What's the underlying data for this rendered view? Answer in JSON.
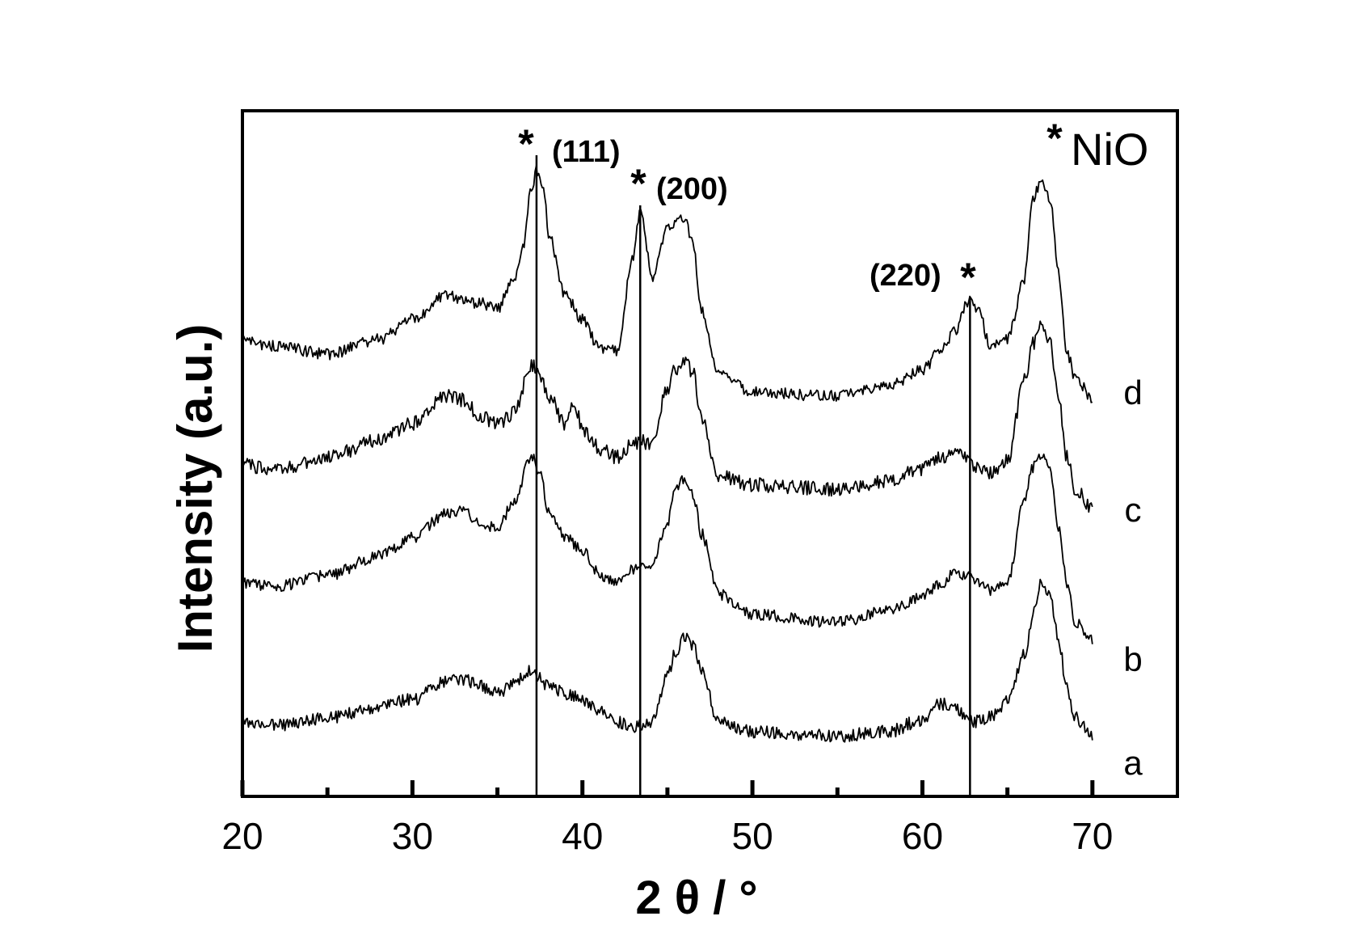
{
  "chart_data": {
    "type": "line",
    "xlabel": "2 θ / °",
    "ylabel": "Intensity (a.u.)",
    "xlim": [
      20,
      75
    ],
    "x_ticks": [
      20,
      30,
      40,
      50,
      60,
      70
    ],
    "x_minor_ticks": [
      25,
      35,
      45,
      55,
      65
    ],
    "y_ticks_shown": false,
    "grid": false,
    "legend": "none",
    "phase_label": {
      "marker": "*",
      "text": "NiO"
    },
    "reference_lines": [
      {
        "x": 37.3,
        "hkl": "(111)",
        "marker": "*"
      },
      {
        "x": 43.4,
        "hkl": "(200)",
        "marker": "*"
      },
      {
        "x": 62.8,
        "hkl": "(220)",
        "marker": "*"
      }
    ],
    "series": [
      {
        "name": "a",
        "x_range": [
          20,
          70
        ],
        "noise": 8,
        "points": [
          [
            20,
            895
          ],
          [
            22,
            897
          ],
          [
            25,
            888
          ],
          [
            28,
            875
          ],
          [
            30,
            865
          ],
          [
            32,
            843
          ],
          [
            33,
            840
          ],
          [
            34,
            848
          ],
          [
            35,
            858
          ],
          [
            36,
            845
          ],
          [
            37,
            830
          ],
          [
            38,
            848
          ],
          [
            39,
            858
          ],
          [
            40,
            865
          ],
          [
            41,
            878
          ],
          [
            42,
            892
          ],
          [
            43,
            898
          ],
          [
            44,
            893
          ],
          [
            45,
            838
          ],
          [
            45.5,
            806
          ],
          [
            46,
            788
          ],
          [
            46.5,
            798
          ],
          [
            47,
            828
          ],
          [
            48,
            892
          ],
          [
            50,
            905
          ],
          [
            55,
            910
          ],
          [
            58,
            905
          ],
          [
            60,
            890
          ],
          [
            61,
            870
          ],
          [
            62,
            878
          ],
          [
            63,
            893
          ],
          [
            64,
            887
          ],
          [
            65,
            868
          ],
          [
            66,
            810
          ],
          [
            66.5,
            760
          ],
          [
            67,
            720
          ],
          [
            67.5,
            732
          ],
          [
            68,
            790
          ],
          [
            68.5,
            850
          ],
          [
            69,
            888
          ],
          [
            70,
            912
          ]
        ]
      },
      {
        "name": "b",
        "x_range": [
          20,
          70
        ],
        "noise": 7,
        "points": [
          [
            20,
            722
          ],
          [
            22,
            725
          ],
          [
            25,
            712
          ],
          [
            28,
            688
          ],
          [
            30,
            665
          ],
          [
            32,
            635
          ],
          [
            33,
            630
          ],
          [
            34,
            648
          ],
          [
            35,
            652
          ],
          [
            36,
            620
          ],
          [
            37,
            563
          ],
          [
            37.5,
            583
          ],
          [
            38,
            630
          ],
          [
            39,
            665
          ],
          [
            40,
            680
          ],
          [
            41,
            710
          ],
          [
            42,
            722
          ],
          [
            43,
            705
          ],
          [
            43.5,
            693
          ],
          [
            44,
            705
          ],
          [
            45,
            645
          ],
          [
            45.5,
            605
          ],
          [
            46,
            593
          ],
          [
            46.5,
            610
          ],
          [
            47,
            660
          ],
          [
            48,
            735
          ],
          [
            50,
            760
          ],
          [
            55,
            770
          ],
          [
            58,
            755
          ],
          [
            60,
            738
          ],
          [
            61,
            723
          ],
          [
            62,
            708
          ],
          [
            63,
            715
          ],
          [
            64,
            730
          ],
          [
            65,
            722
          ],
          [
            66,
            620
          ],
          [
            66.5,
            578
          ],
          [
            67,
            562
          ],
          [
            67.5,
            580
          ],
          [
            68,
            650
          ],
          [
            68.5,
            720
          ],
          [
            69,
            770
          ],
          [
            70,
            790
          ]
        ]
      },
      {
        "name": "c",
        "x_range": [
          20,
          70
        ],
        "noise": 9,
        "points": [
          [
            20,
            575
          ],
          [
            22,
            580
          ],
          [
            25,
            566
          ],
          [
            28,
            545
          ],
          [
            30,
            523
          ],
          [
            32,
            490
          ],
          [
            33,
            495
          ],
          [
            34,
            515
          ],
          [
            35,
            525
          ],
          [
            36,
            510
          ],
          [
            37,
            450
          ],
          [
            37.5,
            465
          ],
          [
            38,
            490
          ],
          [
            39,
            525
          ],
          [
            39.5,
            495
          ],
          [
            40,
            530
          ],
          [
            41,
            555
          ],
          [
            42,
            565
          ],
          [
            43,
            550
          ],
          [
            43.5,
            545
          ],
          [
            44,
            550
          ],
          [
            45,
            480
          ],
          [
            45.5,
            455
          ],
          [
            46,
            445
          ],
          [
            46.5,
            460
          ],
          [
            47,
            515
          ],
          [
            48,
            588
          ],
          [
            50,
            600
          ],
          [
            55,
            605
          ],
          [
            58,
            595
          ],
          [
            60,
            580
          ],
          [
            61,
            565
          ],
          [
            62,
            560
          ],
          [
            63,
            575
          ],
          [
            64,
            585
          ],
          [
            65,
            568
          ],
          [
            66,
            470
          ],
          [
            66.5,
            425
          ],
          [
            67,
            400
          ],
          [
            67.5,
            420
          ],
          [
            68,
            490
          ],
          [
            68.5,
            565
          ],
          [
            69,
            605
          ],
          [
            70,
            628
          ]
        ]
      },
      {
        "name": "d",
        "x_range": [
          20,
          70
        ],
        "noise": 7,
        "points": [
          [
            20,
            422
          ],
          [
            22,
            428
          ],
          [
            25,
            438
          ],
          [
            28,
            420
          ],
          [
            30,
            395
          ],
          [
            32,
            365
          ],
          [
            33,
            372
          ],
          [
            34,
            375
          ],
          [
            35,
            382
          ],
          [
            36,
            342
          ],
          [
            36.5,
            305
          ],
          [
            37,
            235
          ],
          [
            37.3,
            210
          ],
          [
            37.8,
            240
          ],
          [
            38,
            290
          ],
          [
            39,
            365
          ],
          [
            40,
            395
          ],
          [
            41,
            430
          ],
          [
            42,
            433
          ],
          [
            43,
            320
          ],
          [
            43.4,
            258
          ],
          [
            43.8,
            305
          ],
          [
            44,
            345
          ],
          [
            45,
            285
          ],
          [
            45.5,
            272
          ],
          [
            46,
            268
          ],
          [
            46.5,
            300
          ],
          [
            47,
            385
          ],
          [
            48,
            462
          ],
          [
            50,
            485
          ],
          [
            55,
            490
          ],
          [
            58,
            478
          ],
          [
            60,
            458
          ],
          [
            61,
            435
          ],
          [
            62,
            408
          ],
          [
            62.5,
            380
          ],
          [
            62.8,
            370
          ],
          [
            63.3,
            385
          ],
          [
            64,
            428
          ],
          [
            65,
            420
          ],
          [
            66,
            345
          ],
          [
            66.5,
            245
          ],
          [
            67,
            225
          ],
          [
            67.5,
            245
          ],
          [
            68,
            335
          ],
          [
            68.5,
            435
          ],
          [
            69,
            468
          ],
          [
            70,
            492
          ]
        ]
      }
    ],
    "trace_labels": [
      "a",
      "b",
      "c",
      "d"
    ]
  }
}
